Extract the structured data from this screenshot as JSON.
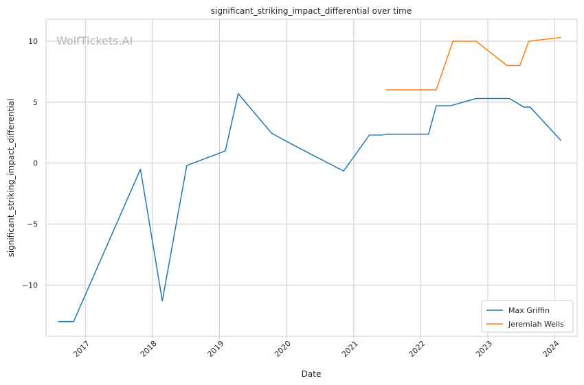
{
  "chart_data": {
    "type": "line",
    "title": "significant_striking_impact_differential over time",
    "xlabel": "Date",
    "ylabel": "significant_striking_impact_differential",
    "watermark": "WolfTickets.AI",
    "xlim": [
      "2016-06-01",
      "2024-05-01"
    ],
    "ylim": [
      -14.2,
      11.8
    ],
    "x_ticks": [
      "2017",
      "2018",
      "2019",
      "2020",
      "2021",
      "2022",
      "2023",
      "2024"
    ],
    "y_ticks": [
      10,
      5,
      0,
      -5,
      -10
    ],
    "y_tick_labels": [
      "10",
      "5",
      "0",
      "−5",
      "−10"
    ],
    "grid": true,
    "legend_position": "bottom-right",
    "series": [
      {
        "name": "Max Griffin",
        "color": "#1f77b4",
        "points": [
          [
            "2016-08-06",
            -13.0
          ],
          [
            "2016-10-29",
            -13.0
          ],
          [
            "2017-10-28",
            -0.5
          ],
          [
            "2018-02-24",
            -11.3
          ],
          [
            "2018-07-07",
            -0.2
          ],
          [
            "2019-02-02",
            1.0
          ],
          [
            "2019-04-13",
            5.7
          ],
          [
            "2019-10-12",
            2.45
          ],
          [
            "2020-03-01",
            1.3
          ],
          [
            "2020-11-07",
            -0.65
          ],
          [
            "2021-03-27",
            2.3
          ],
          [
            "2021-06-05",
            2.3
          ],
          [
            "2021-06-26",
            2.37
          ],
          [
            "2022-02-12",
            2.37
          ],
          [
            "2022-03-26",
            4.7
          ],
          [
            "2022-06-11",
            4.7
          ],
          [
            "2022-10-29",
            5.3
          ],
          [
            "2023-04-29",
            5.3
          ],
          [
            "2023-07-15",
            4.6
          ],
          [
            "2023-08-19",
            4.6
          ],
          [
            "2024-02-03",
            1.85
          ]
        ]
      },
      {
        "name": "Jeremiah Wells",
        "color": "#ff7f0e",
        "points": [
          [
            "2021-06-26",
            6.0
          ],
          [
            "2022-03-26",
            6.0
          ],
          [
            "2022-06-25",
            10.0
          ],
          [
            "2022-10-29",
            10.0
          ],
          [
            "2023-04-15",
            8.0
          ],
          [
            "2023-06-24",
            8.0
          ],
          [
            "2023-08-12",
            10.0
          ],
          [
            "2024-02-03",
            10.3
          ]
        ]
      }
    ]
  }
}
